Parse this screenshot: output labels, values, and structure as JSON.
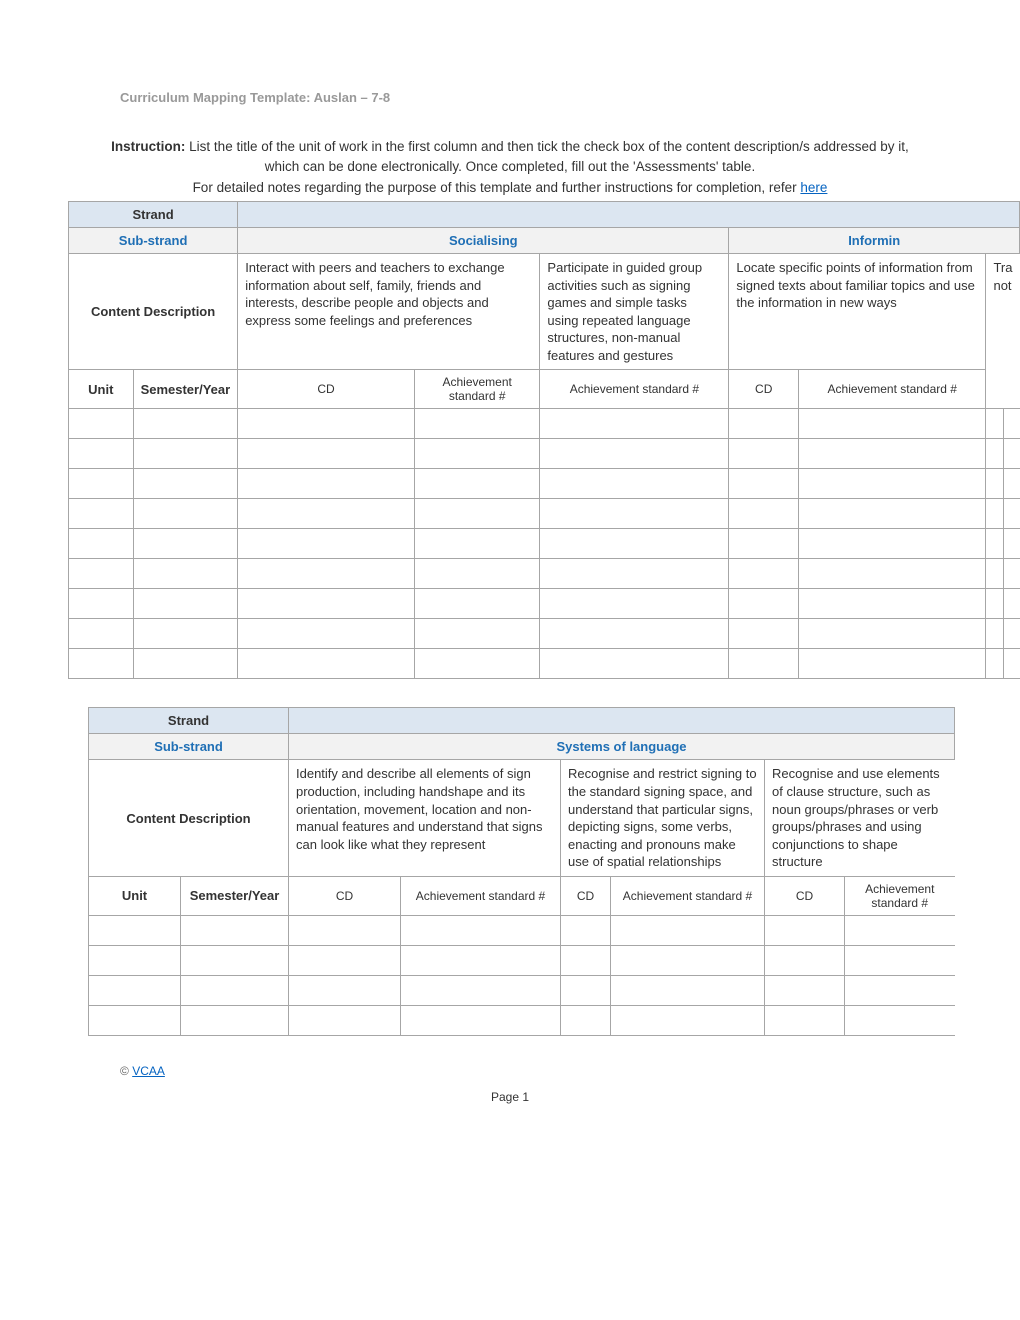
{
  "doc_title": "Curriculum Mapping Template: Auslan – 7-8",
  "instruction_label": "Instruction:",
  "instruction_text": " List the title of the unit of work in the first column and then tick the check box of the content description/s addressed by it, which can be done electronically. Once completed, fill out the 'Assessments' table.",
  "notes_prefix": "For detailed notes regarding the purpose of this template and further instructions for completion, refer ",
  "notes_link": "here",
  "labels": {
    "strand": "Strand",
    "substrand": "Sub-strand",
    "content_desc": "Content Description",
    "unit": "Unit",
    "sem_year": "Semester/Year",
    "cd": "CD",
    "ach": "Achievement standard #"
  },
  "t1": {
    "substrands": {
      "socialising": "Socialising",
      "informing": "Informin"
    },
    "cd1": "Interact with peers and teachers to exchange information about self, family, friends and interests, describe people and objects and express some feelings and preferences",
    "cd2": "Participate in guided group activities such as signing games and simple tasks using repeated language structures, non-manual features and gestures",
    "cd3": "Locate specific points of information from signed texts about familiar topics and use the information in new ways",
    "cd4a": "Tra",
    "cd4b": "not",
    "empty_rows": 9
  },
  "t2": {
    "substrand": "Systems of language",
    "cd1": "Identify and describe all elements of sign production, including handshape and its orientation, movement, location and non-manual features and understand that signs can look like what they represent",
    "cd2": "Recognise and restrict signing to the standard signing space, and understand that particular signs, depicting signs, some verbs, enacting and pronouns make use of spatial relationships",
    "cd3": "Recognise and use elements of clause structure, such as noun groups/phrases or verb groups/phrases and using conjunctions to shape structure",
    "empty_rows": 4
  },
  "footer": {
    "copyright": "© ",
    "vcaa": "VCAA",
    "page": "Page 1"
  },
  "colors": {
    "header_blue": "#dce6f1",
    "header_grey": "#f2f2f2",
    "border": "#a6a6a6",
    "link": "#0563c1",
    "sublink": "#1f6fb5",
    "muted": "#999999"
  }
}
